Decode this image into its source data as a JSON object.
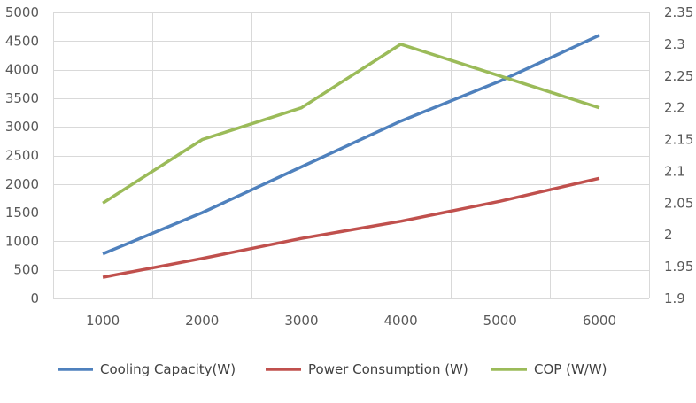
{
  "chart_data": {
    "type": "line",
    "title": "",
    "xlabel": "",
    "ylabel": "",
    "y2label": "",
    "categories": [
      "1000",
      "2000",
      "3000",
      "4000",
      "5000",
      "6000"
    ],
    "ylim": [
      0,
      5000
    ],
    "ytick_step": 500,
    "y_ticks": [
      "0",
      "500",
      "1000",
      "1500",
      "2000",
      "2500",
      "3000",
      "3500",
      "4000",
      "4500",
      "5000"
    ],
    "y2lim": [
      1.9,
      2.35
    ],
    "y2_ticks": [
      "1.9",
      "1.95",
      "2",
      "2.05",
      "2.1",
      "2.15",
      "2.2",
      "2.25",
      "2.3",
      "2.35"
    ],
    "grid": true,
    "legend_position": "bottom",
    "series": [
      {
        "name": "Cooling Capacity(W)",
        "axis": "left",
        "color": "#4F81BD",
        "values": [
          780,
          1500,
          2300,
          3100,
          3800,
          4600
        ]
      },
      {
        "name": "Power Consumption (W)",
        "axis": "left",
        "color": "#C0504D",
        "values": [
          370,
          700,
          1050,
          1350,
          1700,
          2100
        ]
      },
      {
        "name": "COP (W/W)",
        "axis": "right",
        "color": "#9BBB59",
        "values": [
          2.05,
          2.15,
          2.2,
          2.3,
          2.25,
          2.2
        ]
      }
    ]
  }
}
